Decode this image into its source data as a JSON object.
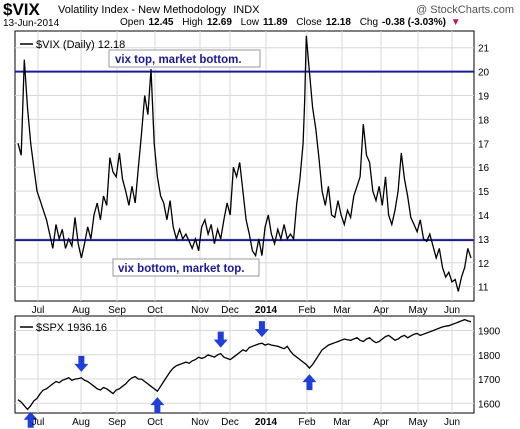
{
  "header": {
    "symbol": "$VIX",
    "name": "Volatility Index - New Methodology",
    "exchange": "INDX",
    "watermark": "@ StockCharts.com",
    "date": "13-Jun-2014",
    "open_label": "Open",
    "open": "12.45",
    "high_label": "High",
    "high": "12.69",
    "low_label": "Low",
    "low": "11.89",
    "close_label": "Close",
    "close": "12.18",
    "chg_label": "Chg",
    "chg": "-0.38 (-3.03%)",
    "chg_marker": "▼"
  },
  "chart_data": [
    {
      "type": "line",
      "legend": "$VIX (Daily) 12.18",
      "series": [
        {
          "name": "$VIX",
          "color": "#000000"
        }
      ],
      "y_ticks": [
        11,
        12,
        13,
        14,
        15,
        16,
        17,
        18,
        19,
        20,
        21
      ],
      "ylim": [
        10.4,
        21.7
      ],
      "x_labels": [
        "Jul",
        "Aug",
        "Sep",
        "Oct",
        "Nov",
        "Dec",
        "2014",
        "Feb",
        "Mar",
        "Apr",
        "May",
        "Jun"
      ],
      "horizontal_lines": [
        20,
        12.95
      ],
      "horizontal_line_color": "#1a1a99",
      "annotations": [
        {
          "text": "vix top, market bottom."
        },
        {
          "text": "vix bottom, market top."
        }
      ],
      "points": [
        [
          0,
          17.0
        ],
        [
          2,
          16.5
        ],
        [
          4,
          20.5
        ],
        [
          6,
          18.5
        ],
        [
          8,
          17.0
        ],
        [
          10,
          16.0
        ],
        [
          12,
          15.0
        ],
        [
          14,
          14.6
        ],
        [
          16,
          14.2
        ],
        [
          18,
          13.8
        ],
        [
          20,
          13.2
        ],
        [
          22,
          12.6
        ],
        [
          24,
          13.6
        ],
        [
          26,
          13.0
        ],
        [
          28,
          13.4
        ],
        [
          30,
          12.6
        ],
        [
          32,
          13.0
        ],
        [
          34,
          12.7
        ],
        [
          36,
          13.9
        ],
        [
          38,
          12.8
        ],
        [
          40,
          12.2
        ],
        [
          42,
          12.8
        ],
        [
          44,
          13.5
        ],
        [
          46,
          13.0
        ],
        [
          48,
          14.0
        ],
        [
          50,
          14.5
        ],
        [
          52,
          13.8
        ],
        [
          54,
          14.8
        ],
        [
          56,
          14.4
        ],
        [
          58,
          16.4
        ],
        [
          60,
          15.8
        ],
        [
          62,
          15.6
        ],
        [
          64,
          16.6
        ],
        [
          66,
          15.5
        ],
        [
          68,
          15.0
        ],
        [
          70,
          14.4
        ],
        [
          72,
          15.2
        ],
        [
          74,
          14.5
        ],
        [
          76,
          16.0
        ],
        [
          78,
          17.4
        ],
        [
          80,
          19.0
        ],
        [
          82,
          18.2
        ],
        [
          84,
          20.1
        ],
        [
          86,
          17.0
        ],
        [
          88,
          15.6
        ],
        [
          90,
          14.8
        ],
        [
          92,
          14.5
        ],
        [
          94,
          13.8
        ],
        [
          96,
          14.6
        ],
        [
          98,
          13.5
        ],
        [
          100,
          13.0
        ],
        [
          102,
          13.4
        ],
        [
          104,
          13.0
        ],
        [
          106,
          13.2
        ],
        [
          108,
          12.9
        ],
        [
          110,
          12.6
        ],
        [
          112,
          13.0
        ],
        [
          114,
          12.5
        ],
        [
          116,
          13.5
        ],
        [
          118,
          13.8
        ],
        [
          120,
          13.2
        ],
        [
          122,
          13.6
        ],
        [
          124,
          12.8
        ],
        [
          126,
          13.4
        ],
        [
          128,
          13.0
        ],
        [
          130,
          13.8
        ],
        [
          132,
          14.5
        ],
        [
          134,
          14.0
        ],
        [
          136,
          16.0
        ],
        [
          138,
          15.6
        ],
        [
          140,
          16.2
        ],
        [
          142,
          15.0
        ],
        [
          144,
          13.8
        ],
        [
          146,
          13.2
        ],
        [
          148,
          12.5
        ],
        [
          150,
          12.3
        ],
        [
          152,
          13.0
        ],
        [
          154,
          12.3
        ],
        [
          156,
          13.5
        ],
        [
          158,
          14.0
        ],
        [
          160,
          13.2
        ],
        [
          162,
          12.8
        ],
        [
          164,
          13.4
        ],
        [
          166,
          13.0
        ],
        [
          168,
          13.6
        ],
        [
          170,
          13.0
        ],
        [
          172,
          13.2
        ],
        [
          174,
          13.0
        ],
        [
          176,
          14.5
        ],
        [
          178,
          15.5
        ],
        [
          180,
          17.0
        ],
        [
          181,
          18.8
        ],
        [
          182,
          21.5
        ],
        [
          184,
          20.0
        ],
        [
          186,
          18.5
        ],
        [
          188,
          17.6
        ],
        [
          190,
          16.4
        ],
        [
          192,
          15.0
        ],
        [
          194,
          14.4
        ],
        [
          196,
          15.2
        ],
        [
          198,
          14.0
        ],
        [
          200,
          13.9
        ],
        [
          202,
          14.6
        ],
        [
          204,
          14.0
        ],
        [
          206,
          13.6
        ],
        [
          208,
          14.2
        ],
        [
          210,
          13.9
        ],
        [
          212,
          14.8
        ],
        [
          214,
          15.2
        ],
        [
          216,
          15.6
        ],
        [
          218,
          17.8
        ],
        [
          220,
          16.5
        ],
        [
          222,
          16.2
        ],
        [
          224,
          15.0
        ],
        [
          226,
          14.6
        ],
        [
          228,
          15.2
        ],
        [
          230,
          14.4
        ],
        [
          232,
          15.6
        ],
        [
          234,
          14.0
        ],
        [
          236,
          13.6
        ],
        [
          238,
          14.2
        ],
        [
          240,
          15.0
        ],
        [
          242,
          16.6
        ],
        [
          244,
          15.5
        ],
        [
          246,
          14.8
        ],
        [
          248,
          13.9
        ],
        [
          250,
          13.6
        ],
        [
          252,
          13.3
        ],
        [
          254,
          13.8
        ],
        [
          256,
          13.0
        ],
        [
          258,
          12.9
        ],
        [
          260,
          13.2
        ],
        [
          262,
          12.7
        ],
        [
          264,
          12.2
        ],
        [
          266,
          12.6
        ],
        [
          268,
          11.8
        ],
        [
          270,
          11.4
        ],
        [
          272,
          11.6
        ],
        [
          274,
          11.2
        ],
        [
          276,
          11.3
        ],
        [
          278,
          10.8
        ],
        [
          280,
          11.4
        ],
        [
          282,
          11.8
        ],
        [
          284,
          12.6
        ],
        [
          286,
          12.2
        ]
      ]
    },
    {
      "type": "line",
      "legend": "$SPX 1936.16",
      "series": [
        {
          "name": "$SPX",
          "color": "#000000"
        }
      ],
      "y_ticks": [
        1600,
        1700,
        1800,
        1900
      ],
      "ylim": [
        1560,
        1960
      ],
      "x_labels": [
        "Jul",
        "Aug",
        "Sep",
        "Oct",
        "Nov",
        "Dec",
        "2014",
        "Feb",
        "Mar",
        "Apr",
        "May",
        "Jun"
      ],
      "arrow_color": "#1f3fd6",
      "arrows": [
        {
          "x": 8,
          "dir": "up"
        },
        {
          "x": 40,
          "dir": "down"
        },
        {
          "x": 88,
          "dir": "up"
        },
        {
          "x": 128,
          "dir": "down"
        },
        {
          "x": 154,
          "dir": "down"
        },
        {
          "x": 184,
          "dir": "up"
        }
      ],
      "points": [
        [
          0,
          1615
        ],
        [
          2,
          1605
        ],
        [
          4,
          1590
        ],
        [
          6,
          1575
        ],
        [
          8,
          1590
        ],
        [
          10,
          1610
        ],
        [
          12,
          1620
        ],
        [
          14,
          1640
        ],
        [
          16,
          1655
        ],
        [
          18,
          1660
        ],
        [
          20,
          1670
        ],
        [
          22,
          1680
        ],
        [
          24,
          1690
        ],
        [
          26,
          1685
        ],
        [
          28,
          1695
        ],
        [
          30,
          1700
        ],
        [
          32,
          1705
        ],
        [
          34,
          1695
        ],
        [
          36,
          1700
        ],
        [
          38,
          1702
        ],
        [
          40,
          1705
        ],
        [
          42,
          1695
        ],
        [
          44,
          1690
        ],
        [
          46,
          1680
        ],
        [
          48,
          1670
        ],
        [
          50,
          1660
        ],
        [
          52,
          1655
        ],
        [
          54,
          1665
        ],
        [
          56,
          1660
        ],
        [
          58,
          1650
        ],
        [
          60,
          1640
        ],
        [
          62,
          1655
        ],
        [
          64,
          1660
        ],
        [
          66,
          1670
        ],
        [
          68,
          1680
        ],
        [
          70,
          1695
        ],
        [
          72,
          1705
        ],
        [
          74,
          1710
        ],
        [
          76,
          1700
        ],
        [
          78,
          1700
        ],
        [
          80,
          1690
        ],
        [
          82,
          1680
        ],
        [
          84,
          1670
        ],
        [
          86,
          1660
        ],
        [
          88,
          1650
        ],
        [
          90,
          1670
        ],
        [
          92,
          1690
        ],
        [
          94,
          1710
        ],
        [
          96,
          1730
        ],
        [
          98,
          1745
        ],
        [
          100,
          1755
        ],
        [
          102,
          1760
        ],
        [
          104,
          1765
        ],
        [
          106,
          1770
        ],
        [
          108,
          1765
        ],
        [
          110,
          1775
        ],
        [
          112,
          1780
        ],
        [
          114,
          1790
        ],
        [
          116,
          1785
        ],
        [
          118,
          1790
        ],
        [
          120,
          1800
        ],
        [
          122,
          1795
        ],
        [
          124,
          1790
        ],
        [
          126,
          1800
        ],
        [
          128,
          1805
        ],
        [
          130,
          1790
        ],
        [
          132,
          1785
        ],
        [
          134,
          1780
        ],
        [
          136,
          1790
        ],
        [
          138,
          1800
        ],
        [
          140,
          1810
        ],
        [
          142,
          1820
        ],
        [
          144,
          1815
        ],
        [
          146,
          1830
        ],
        [
          148,
          1835
        ],
        [
          150,
          1840
        ],
        [
          152,
          1845
        ],
        [
          154,
          1848
        ],
        [
          156,
          1840
        ],
        [
          158,
          1845
        ],
        [
          160,
          1840
        ],
        [
          162,
          1838
        ],
        [
          164,
          1835
        ],
        [
          166,
          1830
        ],
        [
          168,
          1825
        ],
        [
          170,
          1835
        ],
        [
          172,
          1815
        ],
        [
          174,
          1800
        ],
        [
          176,
          1790
        ],
        [
          178,
          1780
        ],
        [
          180,
          1770
        ],
        [
          182,
          1760
        ],
        [
          184,
          1745
        ],
        [
          186,
          1760
        ],
        [
          188,
          1780
        ],
        [
          190,
          1800
        ],
        [
          192,
          1820
        ],
        [
          194,
          1830
        ],
        [
          196,
          1840
        ],
        [
          198,
          1845
        ],
        [
          200,
          1850
        ],
        [
          202,
          1855
        ],
        [
          204,
          1860
        ],
        [
          206,
          1865
        ],
        [
          208,
          1862
        ],
        [
          210,
          1860
        ],
        [
          212,
          1865
        ],
        [
          214,
          1870
        ],
        [
          216,
          1860
        ],
        [
          218,
          1855
        ],
        [
          220,
          1865
        ],
        [
          222,
          1870
        ],
        [
          224,
          1858
        ],
        [
          226,
          1850
        ],
        [
          228,
          1855
        ],
        [
          230,
          1865
        ],
        [
          232,
          1875
        ],
        [
          234,
          1880
        ],
        [
          236,
          1870
        ],
        [
          238,
          1860
        ],
        [
          240,
          1865
        ],
        [
          242,
          1875
        ],
        [
          244,
          1880
        ],
        [
          246,
          1870
        ],
        [
          248,
          1878
        ],
        [
          250,
          1885
        ],
        [
          252,
          1888
        ],
        [
          254,
          1880
        ],
        [
          256,
          1885
        ],
        [
          258,
          1890
        ],
        [
          260,
          1895
        ],
        [
          262,
          1900
        ],
        [
          264,
          1905
        ],
        [
          266,
          1910
        ],
        [
          268,
          1915
        ],
        [
          270,
          1918
        ],
        [
          272,
          1920
        ],
        [
          274,
          1925
        ],
        [
          276,
          1930
        ],
        [
          278,
          1935
        ],
        [
          280,
          1940
        ],
        [
          282,
          1945
        ],
        [
          284,
          1940
        ],
        [
          286,
          1936
        ]
      ]
    }
  ]
}
